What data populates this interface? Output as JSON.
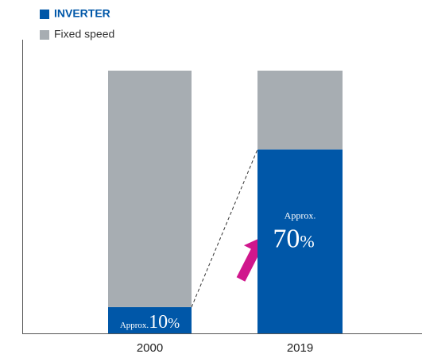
{
  "chart_data": {
    "type": "stacked-bar",
    "categories": [
      "2000",
      "2019"
    ],
    "series": [
      {
        "name": "INVERTER",
        "color": "#0057a8",
        "values": [
          10,
          70
        ],
        "value_labels": [
          "Approx.10%",
          "Approx.70%"
        ]
      },
      {
        "name": "Fixed speed",
        "color": "#a7adb2",
        "values": [
          90,
          30
        ]
      }
    ],
    "ylim": [
      0,
      100
    ]
  }
}
